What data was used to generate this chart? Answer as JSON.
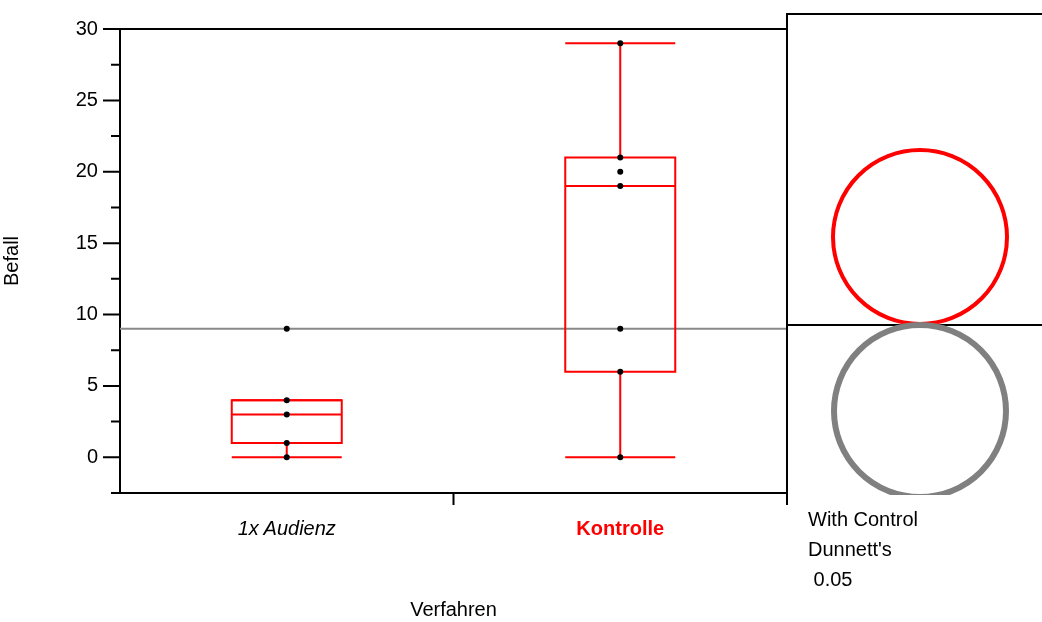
{
  "chart_data": {
    "type": "box",
    "xlabel": "Verfahren",
    "ylabel": "Befall",
    "categories": [
      "1x Audienz",
      "Kontrolle"
    ],
    "color": "#ff0000",
    "boxes": [
      {
        "low": 0,
        "q1": 1,
        "median": 3,
        "q3": 4,
        "high": 4
      },
      {
        "low": 0,
        "q1": 6,
        "median": 19,
        "q3": 21,
        "high": 29
      }
    ],
    "series": [
      {
        "type": "scatter",
        "color": "#000000",
        "x": [
          "1x Audienz",
          "1x Audienz",
          "1x Audienz",
          "1x Audienz",
          "1x Audienz",
          "Kontrolle",
          "Kontrolle",
          "Kontrolle",
          "Kontrolle",
          "Kontrolle",
          "Kontrolle",
          "Kontrolle"
        ],
        "values": [
          9,
          4,
          3,
          1,
          0,
          29,
          21,
          20,
          19,
          9,
          6,
          0
        ]
      }
    ],
    "ylim": [
      -2.5,
      30
    ],
    "yticks": [
      {
        "value": -2.5,
        "label": null
      },
      0,
      {
        "value": 2.5,
        "label": null
      },
      5,
      {
        "value": 7.5,
        "label": null
      },
      10,
      {
        "value": 12.5,
        "label": null
      },
      15,
      {
        "value": 17.5,
        "label": null
      },
      20,
      {
        "value": 22.5,
        "label": null
      },
      25,
      {
        "value": 27.5,
        "label": null
      },
      30
    ],
    "ref_lines": [
      {
        "axis": "y",
        "value": 9,
        "color": "#888888"
      }
    ],
    "annotations": [
      "With Control\nDunnett's\n 0.05"
    ],
    "grid": false,
    "legend": false
  }
}
